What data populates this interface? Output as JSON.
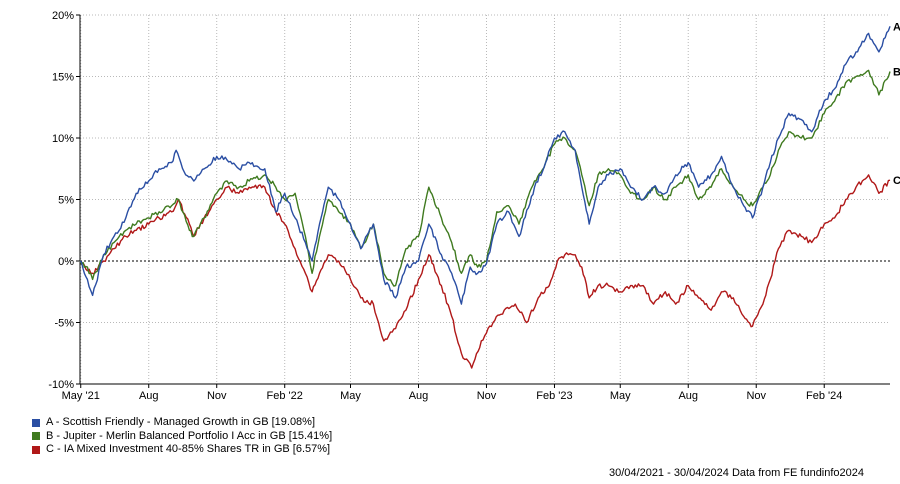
{
  "chart_data": {
    "type": "line",
    "x_range": [
      "2021-04-30",
      "2024-04-30"
    ],
    "ylim": [
      -10,
      20
    ],
    "y_ticks": [
      -10,
      -5,
      0,
      5,
      10,
      15,
      20
    ],
    "y_tick_labels": [
      "-10%",
      "-5%",
      "0%",
      "5%",
      "10%",
      "15%",
      "20%"
    ],
    "x_ticks": [
      {
        "label": "May '21",
        "date": "2021-05-01"
      },
      {
        "label": "Aug",
        "date": "2021-08-01"
      },
      {
        "label": "Nov",
        "date": "2021-11-01"
      },
      {
        "label": "Feb '22",
        "date": "2022-02-01"
      },
      {
        "label": "May",
        "date": "2022-05-01"
      },
      {
        "label": "Aug",
        "date": "2022-08-01"
      },
      {
        "label": "Nov",
        "date": "2022-11-01"
      },
      {
        "label": "Feb '23",
        "date": "2023-02-01"
      },
      {
        "label": "May",
        "date": "2023-05-01"
      },
      {
        "label": "Aug",
        "date": "2023-08-01"
      },
      {
        "label": "Nov",
        "date": "2023-11-01"
      },
      {
        "label": "Feb '24",
        "date": "2024-02-01"
      }
    ],
    "grid": true,
    "zero_line": true,
    "series": [
      {
        "key": "A",
        "name": "A - Scottish Friendly - Managed Growth in GB [19.08%]",
        "color": "#2a4ea3",
        "points": [
          [
            "2021-04-30",
            0
          ],
          [
            "2021-05-10",
            -1.5
          ],
          [
            "2021-05-17",
            -2.8
          ],
          [
            "2021-06-01",
            0.5
          ],
          [
            "2021-06-15",
            2.0
          ],
          [
            "2021-07-01",
            3.5
          ],
          [
            "2021-07-15",
            5.5
          ],
          [
            "2021-08-01",
            6.5
          ],
          [
            "2021-08-15",
            7.5
          ],
          [
            "2021-09-01",
            8.0
          ],
          [
            "2021-09-07",
            9.0
          ],
          [
            "2021-09-20",
            7.0
          ],
          [
            "2021-10-01",
            6.5
          ],
          [
            "2021-10-15",
            7.5
          ],
          [
            "2021-11-01",
            8.5
          ],
          [
            "2021-11-15",
            8.2
          ],
          [
            "2021-12-01",
            7.5
          ],
          [
            "2021-12-15",
            8.0
          ],
          [
            "2022-01-05",
            7.5
          ],
          [
            "2022-01-20",
            4.0
          ],
          [
            "2022-02-01",
            5.5
          ],
          [
            "2022-02-15",
            3.5
          ],
          [
            "2022-03-01",
            1.5
          ],
          [
            "2022-03-10",
            0.0
          ],
          [
            "2022-03-20",
            3.0
          ],
          [
            "2022-04-01",
            6.0
          ],
          [
            "2022-04-15",
            5.0
          ],
          [
            "2022-05-01",
            3.0
          ],
          [
            "2022-05-15",
            1.0
          ],
          [
            "2022-06-01",
            3.0
          ],
          [
            "2022-06-15",
            -1.5
          ],
          [
            "2022-07-01",
            -3.0
          ],
          [
            "2022-07-15",
            -0.5
          ],
          [
            "2022-08-01",
            0.0
          ],
          [
            "2022-08-15",
            3.0
          ],
          [
            "2022-09-01",
            0.5
          ],
          [
            "2022-09-15",
            -1.0
          ],
          [
            "2022-09-28",
            -3.5
          ],
          [
            "2022-10-10",
            -0.5
          ],
          [
            "2022-10-20",
            -1.0
          ],
          [
            "2022-11-01",
            -0.2
          ],
          [
            "2022-11-15",
            3.0
          ],
          [
            "2022-12-01",
            4.0
          ],
          [
            "2022-12-15",
            2.0
          ],
          [
            "2023-01-05",
            6.0
          ],
          [
            "2023-01-20",
            8.0
          ],
          [
            "2023-02-01",
            10.0
          ],
          [
            "2023-02-15",
            10.5
          ],
          [
            "2023-03-01",
            9.0
          ],
          [
            "2023-03-10",
            6.0
          ],
          [
            "2023-03-20",
            3.0
          ],
          [
            "2023-04-01",
            6.0
          ],
          [
            "2023-04-15",
            7.0
          ],
          [
            "2023-05-01",
            7.5
          ],
          [
            "2023-05-15",
            6.0
          ],
          [
            "2023-06-01",
            5.0
          ],
          [
            "2023-06-15",
            6.0
          ],
          [
            "2023-07-01",
            5.5
          ],
          [
            "2023-07-15",
            7.0
          ],
          [
            "2023-08-01",
            8.0
          ],
          [
            "2023-08-15",
            6.0
          ],
          [
            "2023-09-01",
            7.0
          ],
          [
            "2023-09-15",
            8.5
          ],
          [
            "2023-10-01",
            6.0
          ],
          [
            "2023-10-15",
            4.5
          ],
          [
            "2023-10-27",
            3.5
          ],
          [
            "2023-11-10",
            6.0
          ],
          [
            "2023-11-20",
            8.0
          ],
          [
            "2023-12-01",
            10.0
          ],
          [
            "2023-12-15",
            12.0
          ],
          [
            "2024-01-01",
            11.5
          ],
          [
            "2024-01-15",
            10.5
          ],
          [
            "2024-02-01",
            13.0
          ],
          [
            "2024-02-15",
            14.0
          ],
          [
            "2024-03-01",
            16.0
          ],
          [
            "2024-03-15",
            17.0
          ],
          [
            "2024-04-01",
            18.5
          ],
          [
            "2024-04-15",
            17.0
          ],
          [
            "2024-04-30",
            19.08
          ]
        ]
      },
      {
        "key": "B",
        "name": "B - Jupiter - Merlin Balanced Portfolio I Acc in GB [15.41%]",
        "color": "#3f7a1f",
        "points": [
          [
            "2021-04-30",
            0
          ],
          [
            "2021-05-10",
            -0.5
          ],
          [
            "2021-05-17",
            -1.5
          ],
          [
            "2021-06-01",
            0.5
          ],
          [
            "2021-06-15",
            1.5
          ],
          [
            "2021-07-01",
            2.5
          ],
          [
            "2021-07-15",
            3.0
          ],
          [
            "2021-08-01",
            3.5
          ],
          [
            "2021-08-15",
            4.0
          ],
          [
            "2021-09-01",
            4.5
          ],
          [
            "2021-09-10",
            5.0
          ],
          [
            "2021-09-25",
            2.5
          ],
          [
            "2021-10-01",
            2.0
          ],
          [
            "2021-10-15",
            3.5
          ],
          [
            "2021-11-01",
            5.5
          ],
          [
            "2021-11-15",
            6.5
          ],
          [
            "2021-12-01",
            6.0
          ],
          [
            "2021-12-15",
            6.5
          ],
          [
            "2022-01-05",
            7.0
          ],
          [
            "2022-01-20",
            6.0
          ],
          [
            "2022-02-01",
            5.0
          ],
          [
            "2022-02-15",
            5.5
          ],
          [
            "2022-03-01",
            2.0
          ],
          [
            "2022-03-10",
            -1.0
          ],
          [
            "2022-03-20",
            2.0
          ],
          [
            "2022-04-01",
            5.0
          ],
          [
            "2022-04-15",
            4.0
          ],
          [
            "2022-05-01",
            3.0
          ],
          [
            "2022-05-15",
            1.0
          ],
          [
            "2022-06-01",
            3.0
          ],
          [
            "2022-06-15",
            -1.0
          ],
          [
            "2022-07-01",
            -2.0
          ],
          [
            "2022-07-15",
            1.0
          ],
          [
            "2022-08-01",
            2.0
          ],
          [
            "2022-08-15",
            6.0
          ],
          [
            "2022-09-01",
            3.5
          ],
          [
            "2022-09-15",
            1.5
          ],
          [
            "2022-09-28",
            -1.0
          ],
          [
            "2022-10-10",
            0.5
          ],
          [
            "2022-10-20",
            -0.5
          ],
          [
            "2022-11-01",
            0.0
          ],
          [
            "2022-11-15",
            4.0
          ],
          [
            "2022-12-01",
            4.5
          ],
          [
            "2022-12-15",
            3.0
          ],
          [
            "2023-01-05",
            6.5
          ],
          [
            "2023-01-20",
            8.0
          ],
          [
            "2023-02-01",
            9.5
          ],
          [
            "2023-02-15",
            10.0
          ],
          [
            "2023-03-01",
            9.0
          ],
          [
            "2023-03-10",
            7.0
          ],
          [
            "2023-03-20",
            4.5
          ],
          [
            "2023-04-01",
            7.0
          ],
          [
            "2023-04-15",
            7.5
          ],
          [
            "2023-05-01",
            7.0
          ],
          [
            "2023-05-15",
            5.5
          ],
          [
            "2023-06-01",
            5.0
          ],
          [
            "2023-06-15",
            6.0
          ],
          [
            "2023-07-01",
            5.0
          ],
          [
            "2023-07-15",
            6.0
          ],
          [
            "2023-08-01",
            7.0
          ],
          [
            "2023-08-15",
            5.0
          ],
          [
            "2023-09-01",
            6.0
          ],
          [
            "2023-09-15",
            7.5
          ],
          [
            "2023-10-01",
            6.0
          ],
          [
            "2023-10-15",
            5.0
          ],
          [
            "2023-10-27",
            4.5
          ],
          [
            "2023-11-10",
            6.0
          ],
          [
            "2023-11-20",
            7.0
          ],
          [
            "2023-12-01",
            9.0
          ],
          [
            "2023-12-15",
            10.5
          ],
          [
            "2024-01-01",
            10.0
          ],
          [
            "2024-01-15",
            10.0
          ],
          [
            "2024-02-01",
            12.0
          ],
          [
            "2024-02-15",
            13.0
          ],
          [
            "2024-03-01",
            14.5
          ],
          [
            "2024-03-15",
            15.0
          ],
          [
            "2024-04-01",
            15.5
          ],
          [
            "2024-04-15",
            13.5
          ],
          [
            "2024-04-30",
            15.41
          ]
        ]
      },
      {
        "key": "C",
        "name": "C - IA Mixed Investment 40-85% Shares TR in GB [6.57%]",
        "color": "#b01818",
        "points": [
          [
            "2021-04-30",
            0
          ],
          [
            "2021-05-10",
            -0.8
          ],
          [
            "2021-05-17",
            -1.0
          ],
          [
            "2021-06-01",
            0.0
          ],
          [
            "2021-06-15",
            1.0
          ],
          [
            "2021-07-01",
            2.0
          ],
          [
            "2021-07-15",
            2.5
          ],
          [
            "2021-08-01",
            3.0
          ],
          [
            "2021-08-15",
            3.5
          ],
          [
            "2021-09-01",
            4.0
          ],
          [
            "2021-09-10",
            5.0
          ],
          [
            "2021-09-25",
            3.0
          ],
          [
            "2021-10-01",
            2.0
          ],
          [
            "2021-10-15",
            3.5
          ],
          [
            "2021-11-01",
            5.0
          ],
          [
            "2021-11-15",
            6.0
          ],
          [
            "2021-12-01",
            5.5
          ],
          [
            "2021-12-15",
            6.0
          ],
          [
            "2022-01-05",
            6.0
          ],
          [
            "2022-01-20",
            4.0
          ],
          [
            "2022-02-01",
            3.0
          ],
          [
            "2022-02-15",
            1.0
          ],
          [
            "2022-03-01",
            -1.0
          ],
          [
            "2022-03-10",
            -2.5
          ],
          [
            "2022-03-20",
            -1.0
          ],
          [
            "2022-04-01",
            0.5
          ],
          [
            "2022-04-15",
            0.0
          ],
          [
            "2022-05-01",
            -1.5
          ],
          [
            "2022-05-15",
            -3.0
          ],
          [
            "2022-06-01",
            -3.5
          ],
          [
            "2022-06-15",
            -6.5
          ],
          [
            "2022-07-01",
            -5.5
          ],
          [
            "2022-07-15",
            -4.0
          ],
          [
            "2022-08-01",
            -1.5
          ],
          [
            "2022-08-15",
            0.5
          ],
          [
            "2022-09-01",
            -2.0
          ],
          [
            "2022-09-15",
            -4.5
          ],
          [
            "2022-09-28",
            -7.5
          ],
          [
            "2022-10-12",
            -8.7
          ],
          [
            "2022-10-25",
            -6.5
          ],
          [
            "2022-11-10",
            -5.0
          ],
          [
            "2022-11-25",
            -4.0
          ],
          [
            "2022-12-10",
            -3.5
          ],
          [
            "2022-12-25",
            -5.0
          ],
          [
            "2023-01-10",
            -3.0
          ],
          [
            "2023-01-25",
            -2.0
          ],
          [
            "2023-02-05",
            0.0
          ],
          [
            "2023-02-15",
            0.5
          ],
          [
            "2023-03-01",
            0.5
          ],
          [
            "2023-03-10",
            -0.5
          ],
          [
            "2023-03-20",
            -3.0
          ],
          [
            "2023-04-01",
            -2.0
          ],
          [
            "2023-04-15",
            -2.0
          ],
          [
            "2023-05-01",
            -2.5
          ],
          [
            "2023-05-15",
            -2.0
          ],
          [
            "2023-06-01",
            -2.0
          ],
          [
            "2023-06-15",
            -3.5
          ],
          [
            "2023-07-01",
            -2.5
          ],
          [
            "2023-07-15",
            -3.5
          ],
          [
            "2023-08-01",
            -2.0
          ],
          [
            "2023-08-15",
            -3.0
          ],
          [
            "2023-09-01",
            -4.0
          ],
          [
            "2023-09-15",
            -2.5
          ],
          [
            "2023-10-01",
            -3.0
          ],
          [
            "2023-10-15",
            -4.5
          ],
          [
            "2023-10-27",
            -5.3
          ],
          [
            "2023-11-10",
            -3.5
          ],
          [
            "2023-11-20",
            -1.5
          ],
          [
            "2023-12-01",
            1.0
          ],
          [
            "2023-12-15",
            2.5
          ],
          [
            "2024-01-01",
            2.0
          ],
          [
            "2024-01-15",
            1.5
          ],
          [
            "2024-02-01",
            3.0
          ],
          [
            "2024-02-15",
            3.5
          ],
          [
            "2024-03-01",
            5.0
          ],
          [
            "2024-03-15",
            6.0
          ],
          [
            "2024-04-01",
            7.0
          ],
          [
            "2024-04-15",
            5.5
          ],
          [
            "2024-04-30",
            6.57
          ]
        ]
      }
    ]
  },
  "footer": "30/04/2021 - 30/04/2024 Data from FE fundinfo2024"
}
